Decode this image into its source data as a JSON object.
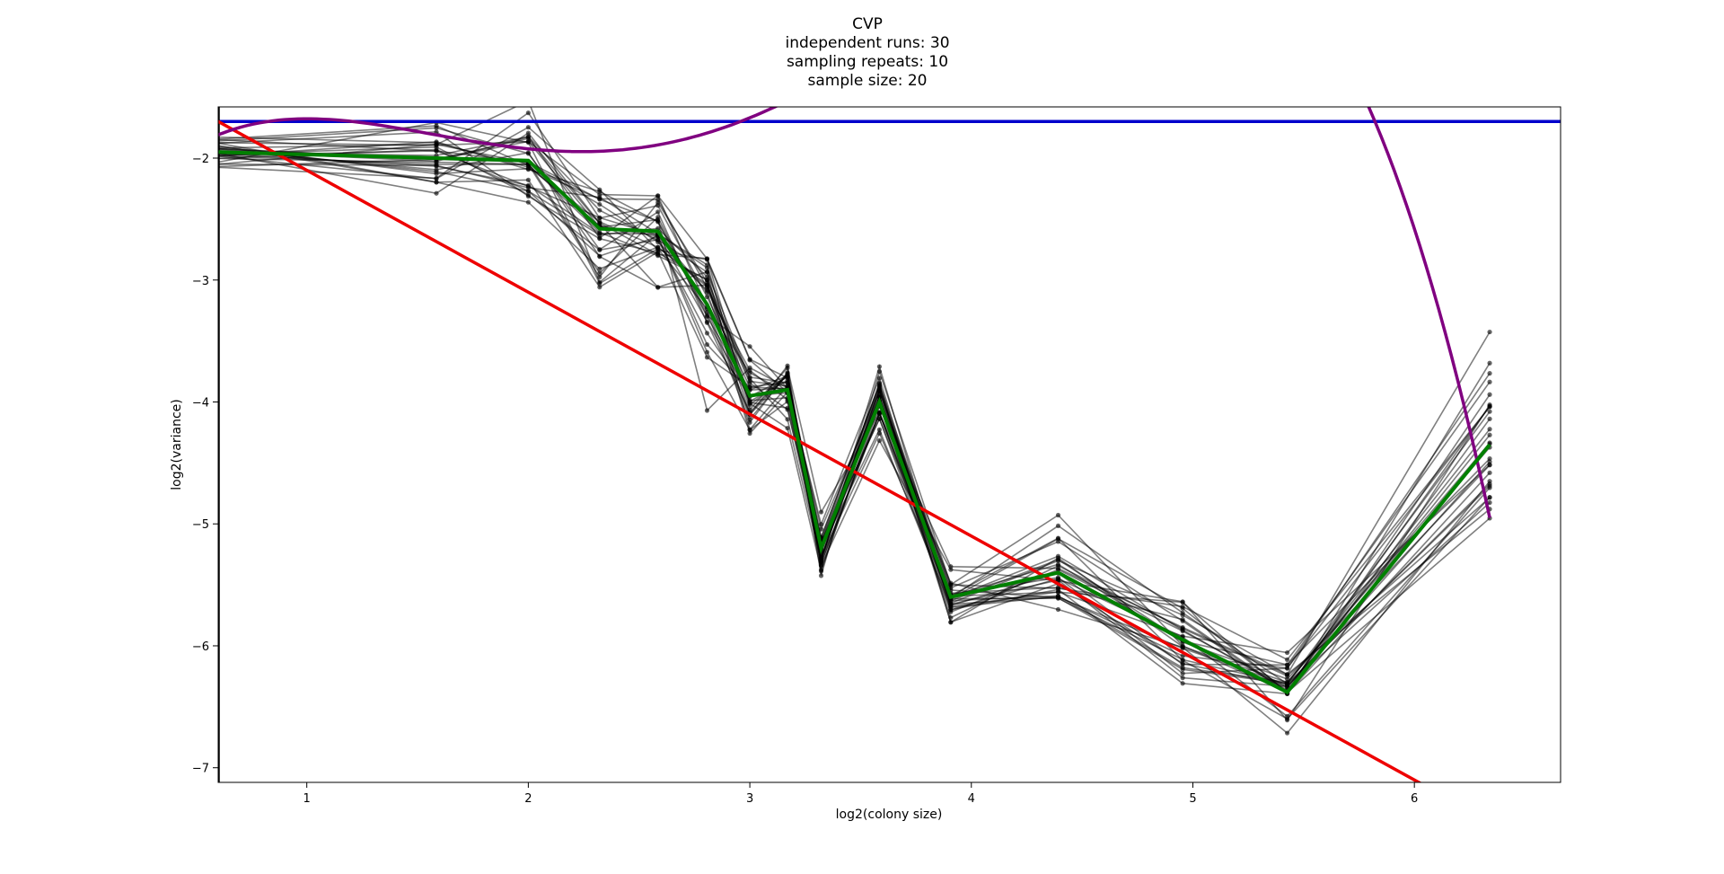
{
  "chart_data": {
    "type": "line",
    "title": [
      "CVP",
      "independent runs: 30",
      "sampling repeats: 10",
      "sample size: 20"
    ],
    "xlabel": "log2(colony size)",
    "ylabel": "log2(variance)",
    "xlim": [
      0.6,
      6.66
    ],
    "ylim": [
      -7.12,
      -1.58
    ],
    "x_ticks": [
      1,
      2,
      3,
      4,
      5,
      6
    ],
    "y_ticks": [
      -2,
      -3,
      -4,
      -5,
      -6,
      -7
    ],
    "x": [
      0.585,
      1.585,
      2.0,
      2.322,
      2.585,
      2.807,
      3.0,
      3.17,
      3.322,
      3.585,
      3.907,
      4.392,
      4.954,
      5.426,
      6.34
    ],
    "mean_series": {
      "values": [
        -1.95,
        -2.0,
        -2.02,
        -2.58,
        -2.6,
        -3.2,
        -3.95,
        -3.9,
        -5.2,
        -4.0,
        -5.6,
        -5.4,
        -5.95,
        -6.38,
        -4.35
      ],
      "color": "#008000"
    },
    "runs": {
      "count": 30,
      "color": "#000000",
      "opacity": 0.5,
      "spread": [
        0.11,
        0.14,
        0.18,
        0.22,
        0.2,
        0.25,
        0.2,
        0.12,
        0.14,
        0.15,
        0.1,
        0.17,
        0.18,
        0.18,
        0.4
      ]
    },
    "baseline": {
      "y": -1.7,
      "color": "#0000cc"
    },
    "linear_fit": {
      "slope": -1.0,
      "intercept": -1.1,
      "color": "#ee0000"
    },
    "poly_fit": {
      "coeffs": [
        -2.82,
        2.86,
        -2.36,
        0.708,
        -0.0655
      ],
      "x_range": [
        0.585,
        6.34
      ],
      "color": "#800080"
    },
    "vertical_line": {
      "x": 0.6,
      "color": "#000000"
    },
    "grid": false,
    "legend": "none"
  }
}
